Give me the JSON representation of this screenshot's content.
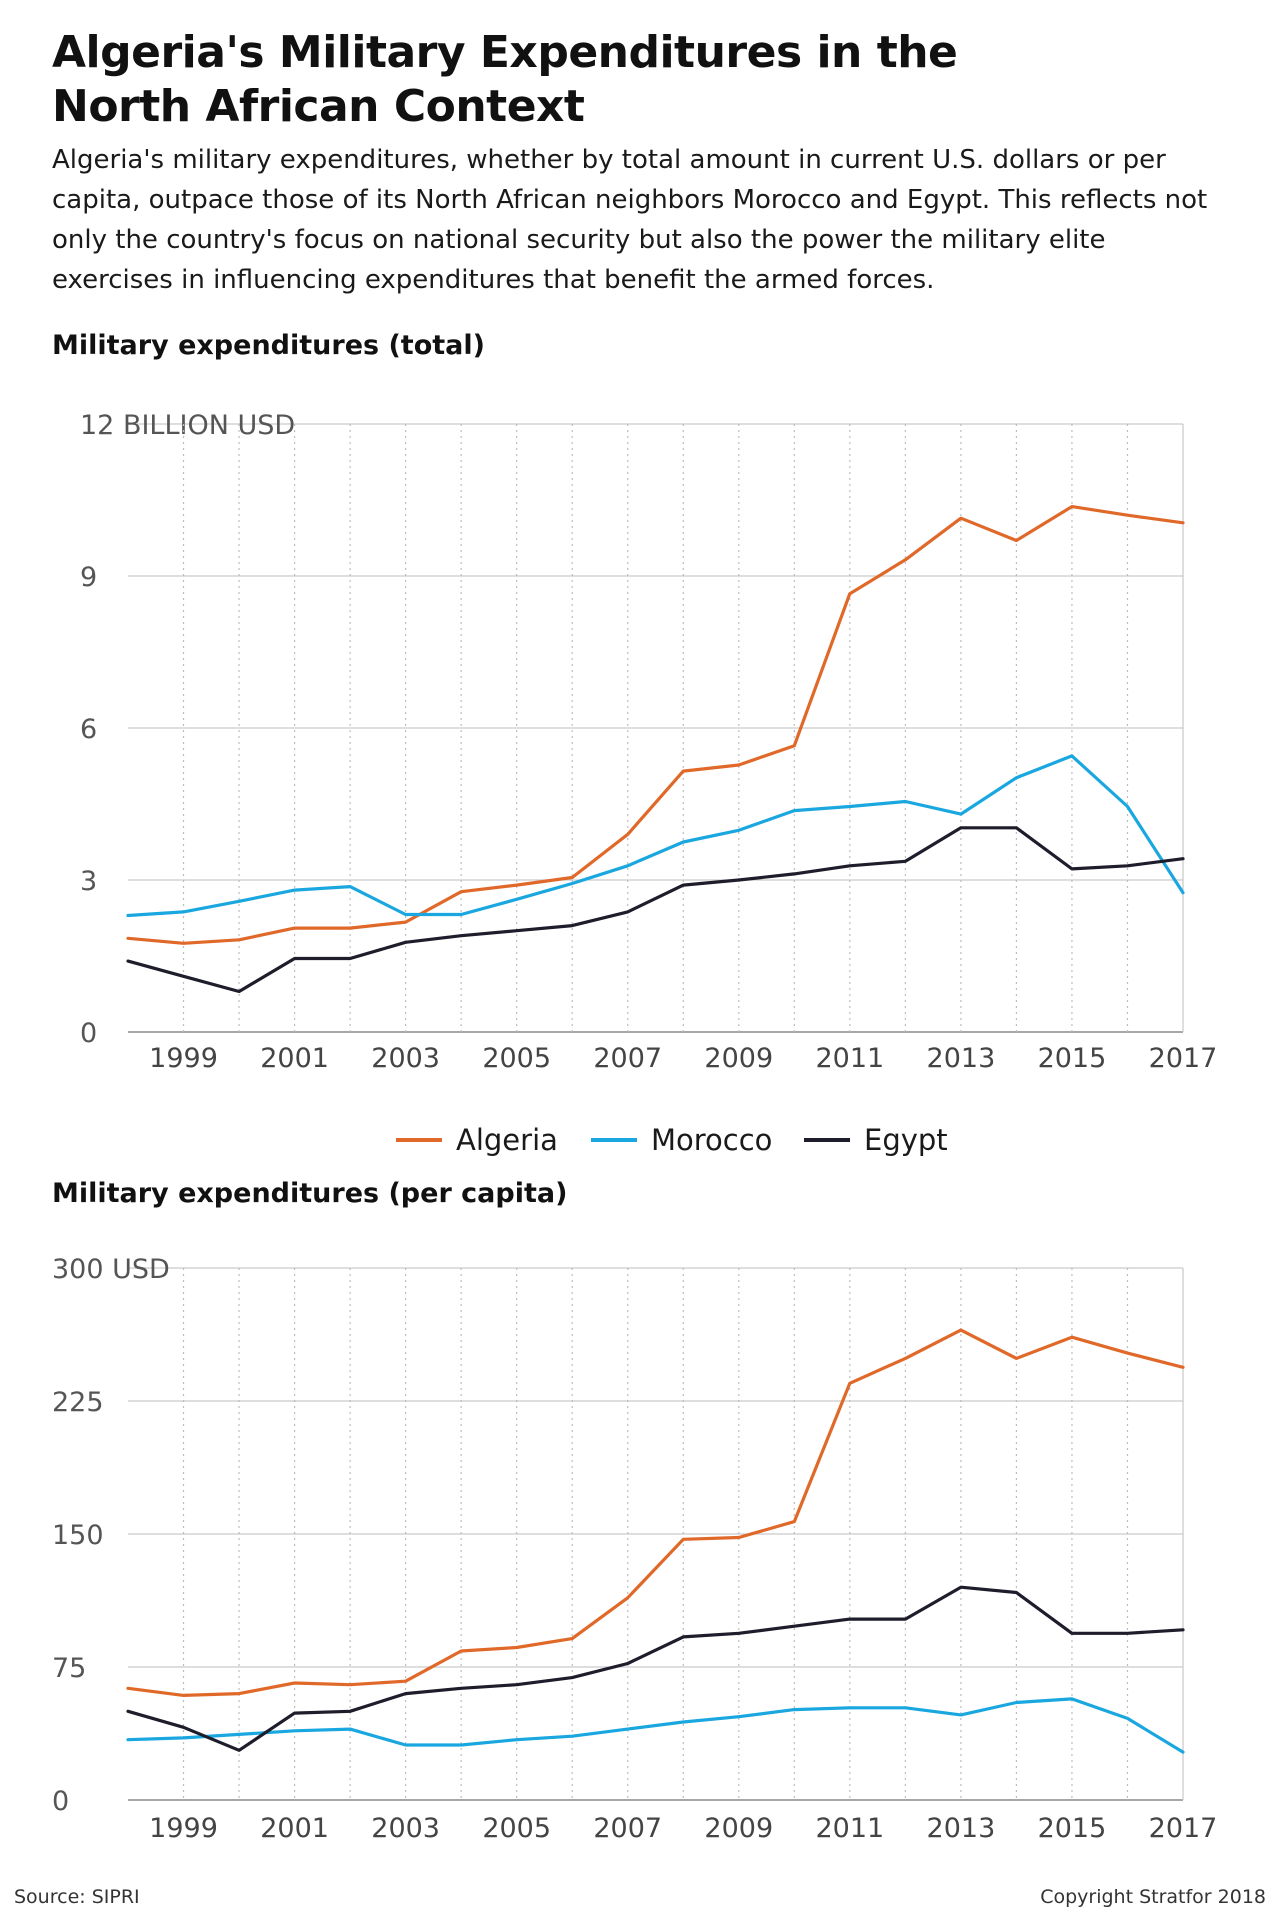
{
  "header": {
    "title_line1": "Algeria's Military Expenditures in the",
    "title_line2": "North African Context",
    "subtitle": "Algeria's military expenditures, whether by total amount in current U.S. dollars or per capita, outpace those of its North African neighbors Morocco and Egypt. This reflects not only the country's focus on national security but also the power the military elite exercises in influencing expenditures that benefit the armed forces."
  },
  "legend": {
    "items": [
      {
        "label": "Algeria",
        "color": "#E0692A"
      },
      {
        "label": "Morocco",
        "color": "#1AA7E0"
      },
      {
        "label": "Egypt",
        "color": "#1D1D2B"
      }
    ]
  },
  "footer": {
    "source": "Source: SIPRI",
    "copyright": "Copyright Stratfor 2018"
  },
  "chart_data": [
    {
      "type": "line",
      "title": "Military expenditures (total)",
      "ylabel": "",
      "y_unit_label": "BILLION USD",
      "ylim": [
        0,
        12
      ],
      "yticks": [
        0,
        3,
        6,
        9,
        12
      ],
      "xlim": [
        1998,
        2017
      ],
      "xticks": [
        1999,
        2001,
        2003,
        2005,
        2007,
        2009,
        2011,
        2013,
        2015,
        2017
      ],
      "grid": true,
      "legend_position": "below",
      "x": [
        1998,
        1999,
        2000,
        2001,
        2002,
        2003,
        2004,
        2005,
        2006,
        2007,
        2008,
        2009,
        2010,
        2011,
        2012,
        2013,
        2014,
        2015,
        2016,
        2017
      ],
      "series": [
        {
          "name": "Algeria",
          "color": "#E0692A",
          "values": [
            1.85,
            1.75,
            1.82,
            2.05,
            2.05,
            2.17,
            2.77,
            2.9,
            3.05,
            3.9,
            5.15,
            5.27,
            5.65,
            8.65,
            9.32,
            10.14,
            9.7,
            10.37,
            10.2,
            10.05
          ]
        },
        {
          "name": "Morocco",
          "color": "#1AA7E0",
          "values": [
            2.3,
            2.37,
            2.58,
            2.8,
            2.87,
            2.32,
            2.32,
            2.62,
            2.93,
            3.28,
            3.75,
            3.98,
            4.37,
            4.45,
            4.55,
            4.3,
            5.02,
            5.45,
            4.45,
            2.75
          ]
        },
        {
          "name": "Egypt",
          "color": "#1D1D2B",
          "values": [
            1.4,
            1.1,
            0.8,
            1.45,
            1.45,
            1.77,
            1.9,
            2.0,
            2.1,
            2.37,
            2.9,
            3.0,
            3.12,
            3.28,
            3.37,
            4.03,
            4.03,
            3.22,
            3.28,
            3.42
          ]
        }
      ]
    },
    {
      "type": "line",
      "title": "Military expenditures (per capita)",
      "ylabel": "",
      "y_unit_label": "USD",
      "ylim": [
        0,
        300
      ],
      "yticks": [
        0,
        75,
        150,
        225,
        300
      ],
      "xlim": [
        1998,
        2017
      ],
      "xticks": [
        1999,
        2001,
        2003,
        2005,
        2007,
        2009,
        2011,
        2013,
        2015,
        2017
      ],
      "grid": true,
      "x": [
        1998,
        1999,
        2000,
        2001,
        2002,
        2003,
        2004,
        2005,
        2006,
        2007,
        2008,
        2009,
        2010,
        2011,
        2012,
        2013,
        2014,
        2015,
        2016,
        2017
      ],
      "series": [
        {
          "name": "Algeria",
          "color": "#E0692A",
          "values": [
            63,
            59,
            60,
            66,
            65,
            67,
            84,
            86,
            91,
            114,
            147,
            148,
            157,
            235,
            249,
            265,
            249,
            261,
            252,
            244
          ]
        },
        {
          "name": "Morocco",
          "color": "#1AA7E0",
          "values": [
            34,
            35,
            37,
            39,
            40,
            31,
            31,
            34,
            36,
            40,
            44,
            47,
            51,
            52,
            52,
            48,
            55,
            57,
            46,
            27
          ]
        },
        {
          "name": "Egypt",
          "color": "#1D1D2B",
          "values": [
            50,
            41,
            28,
            49,
            50,
            60,
            63,
            65,
            69,
            77,
            92,
            94,
            98,
            102,
            102,
            120,
            117,
            94,
            94,
            96
          ]
        }
      ]
    }
  ]
}
